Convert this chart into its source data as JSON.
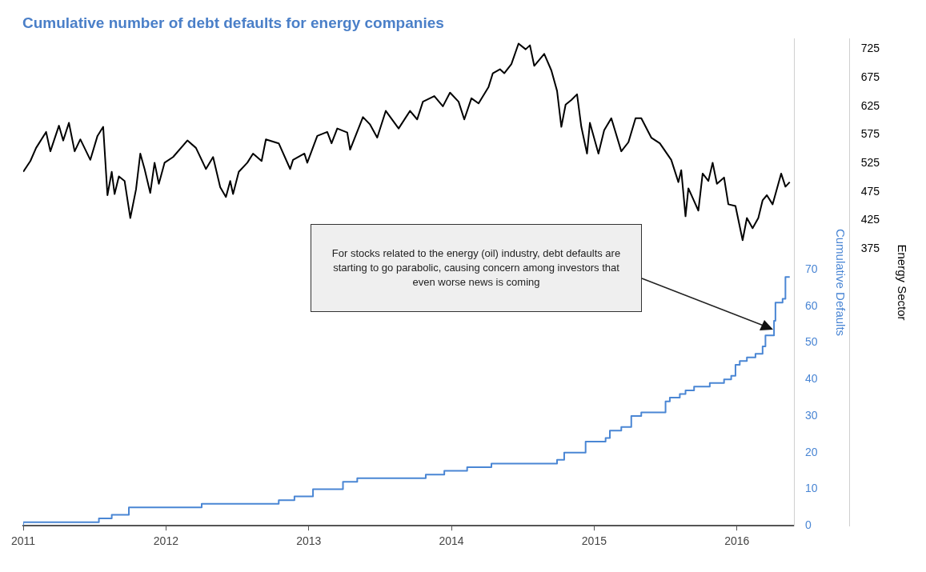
{
  "chart_data": {
    "type": "line",
    "title": "Cumulative number of debt defaults for energy companies",
    "ylabel": "Cumulative Defaults",
    "y2label": "Energy Sector",
    "xlim": [
      2011,
      2016.4
    ],
    "xticks": [
      2011,
      2012,
      2013,
      2014,
      2015,
      2016
    ],
    "ylim": [
      0,
      133
    ],
    "yticks": [
      0,
      10,
      20,
      30,
      40,
      50,
      60,
      70
    ],
    "y2lim": [
      -111,
      743
    ],
    "y2ticks": [
      375,
      425,
      475,
      525,
      575,
      625,
      675,
      725
    ],
    "grid": false,
    "legend": false,
    "annotations": [
      "For stocks related to the energy (oil) industry, debt defaults are starting to go parabolic, causing concern among investors that even worse news is coming"
    ],
    "series": [
      {
        "axis": "y2",
        "color": "#000000",
        "x": [
          2011.0,
          2011.05,
          2011.09,
          2011.16,
          2011.19,
          2011.25,
          2011.28,
          2011.32,
          2011.36,
          2011.4,
          2011.47,
          2011.52,
          2011.56,
          2011.59,
          2011.62,
          2011.64,
          2011.67,
          2011.71,
          2011.75,
          2011.79,
          2011.82,
          2011.85,
          2011.89,
          2011.92,
          2011.95,
          2011.99,
          2012.05,
          2012.15,
          2012.21,
          2012.28,
          2012.33,
          2012.38,
          2012.42,
          2012.45,
          2012.47,
          2012.51,
          2012.57,
          2012.61,
          2012.67,
          2012.7,
          2012.79,
          2012.87,
          2012.89,
          2012.97,
          2012.99,
          2013.06,
          2013.13,
          2013.16,
          2013.2,
          2013.27,
          2013.29,
          2013.38,
          2013.43,
          2013.48,
          2013.54,
          2013.63,
          2013.71,
          2013.76,
          2013.8,
          2013.88,
          2013.94,
          2013.99,
          2014.05,
          2014.09,
          2014.14,
          2014.19,
          2014.26,
          2014.29,
          2014.34,
          2014.37,
          2014.42,
          2014.47,
          2014.52,
          2014.55,
          2014.58,
          2014.65,
          2014.7,
          2014.74,
          2014.77,
          2014.8,
          2014.84,
          2014.88,
          2014.91,
          2014.95,
          2014.97,
          2015.03,
          2015.07,
          2015.12,
          2015.19,
          2015.24,
          2015.29,
          2015.33,
          2015.4,
          2015.46,
          2015.54,
          2015.59,
          2015.61,
          2015.64,
          2015.66,
          2015.73,
          2015.76,
          2015.8,
          2015.83,
          2015.86,
          2015.91,
          2015.94,
          2015.99,
          2016.04,
          2016.07,
          2016.11,
          2016.15,
          2016.18,
          2016.21,
          2016.25,
          2016.31,
          2016.34,
          2016.37
        ],
        "values": [
          510,
          529,
          552,
          580,
          546,
          591,
          565,
          596,
          546,
          567,
          531,
          573,
          589,
          469,
          510,
          471,
          502,
          494,
          429,
          479,
          542,
          515,
          473,
          526,
          489,
          526,
          536,
          565,
          552,
          515,
          536,
          483,
          466,
          494,
          471,
          510,
          526,
          542,
          529,
          567,
          560,
          515,
          531,
          542,
          526,
          573,
          580,
          560,
          586,
          579,
          549,
          606,
          593,
          570,
          617,
          586,
          617,
          602,
          633,
          643,
          625,
          649,
          633,
          602,
          639,
          630,
          659,
          683,
          690,
          683,
          699,
          735,
          725,
          732,
          696,
          717,
          688,
          652,
          589,
          628,
          636,
          646,
          589,
          542,
          596,
          542,
          583,
          604,
          546,
          562,
          604,
          604,
          570,
          560,
          531,
          492,
          513,
          432,
          481,
          442,
          507,
          494,
          526,
          489,
          500,
          453,
          450,
          390,
          429,
          411,
          429,
          460,
          469,
          453,
          507,
          484,
          492
        ]
      },
      {
        "type": "step",
        "color": "#4a86d4",
        "x": [
          2011.0,
          2011.53,
          2011.62,
          2011.74,
          2012.25,
          2012.79,
          2012.9,
          2013.03,
          2013.24,
          2013.34,
          2013.82,
          2013.95,
          2014.11,
          2014.28,
          2014.74,
          2014.79,
          2014.94,
          2015.08,
          2015.11,
          2015.19,
          2015.26,
          2015.33,
          2015.5,
          2015.53,
          2015.6,
          2015.64,
          2015.7,
          2015.81,
          2015.91,
          2015.96,
          2015.99,
          2016.02,
          2016.07,
          2016.13,
          2016.18,
          2016.2,
          2016.26,
          2016.27,
          2016.32,
          2016.34,
          2016.36,
          2016.37
        ],
        "values": [
          0,
          1,
          2,
          3,
          5,
          6,
          7,
          8,
          10,
          12,
          13,
          14,
          15,
          16,
          17,
          18,
          20,
          23,
          24,
          26,
          27,
          30,
          31,
          34,
          35,
          36,
          37,
          38,
          39,
          40,
          41,
          44,
          45,
          46,
          47,
          49,
          52,
          56,
          61,
          62,
          68,
          68
        ]
      }
    ]
  }
}
